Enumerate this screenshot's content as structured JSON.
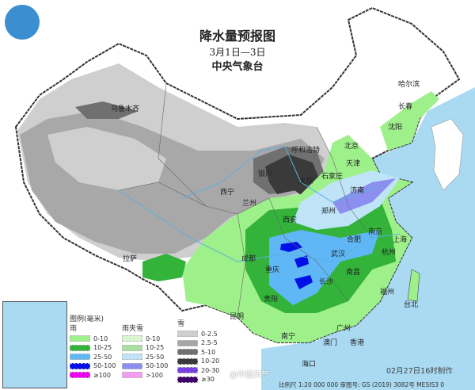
{
  "header": {
    "title": "降水量预报图",
    "date_range": "3月1日—3日",
    "issuer": "中央气象台"
  },
  "cities": [
    {
      "name": "乌鲁木齐"
    },
    {
      "name": "哈尔滨"
    },
    {
      "name": "长春"
    },
    {
      "name": "沈阳"
    },
    {
      "name": "呼和浩特"
    },
    {
      "name": "北京"
    },
    {
      "name": "天津"
    },
    {
      "name": "银川"
    },
    {
      "name": "太原"
    },
    {
      "name": "石家庄"
    },
    {
      "name": "济南"
    },
    {
      "name": "西宁"
    },
    {
      "name": "兰州"
    },
    {
      "name": "郑州"
    },
    {
      "name": "西安"
    },
    {
      "name": "合肥"
    },
    {
      "name": "南京"
    },
    {
      "name": "上海"
    },
    {
      "name": "武汉"
    },
    {
      "name": "杭州"
    },
    {
      "name": "成都"
    },
    {
      "name": "重庆"
    },
    {
      "name": "长沙"
    },
    {
      "name": "南昌"
    },
    {
      "name": "拉萨"
    },
    {
      "name": "贵阳"
    },
    {
      "name": "福州"
    },
    {
      "name": "台北"
    },
    {
      "name": "昆明"
    },
    {
      "name": "南宁"
    },
    {
      "name": "广州"
    },
    {
      "name": "澳门"
    },
    {
      "name": "香港"
    },
    {
      "name": "海口"
    }
  ],
  "legend": {
    "title": "图例(毫米)",
    "rain": {
      "label": "雨",
      "items": [
        {
          "range": "0-10",
          "color": "#9ef08a"
        },
        {
          "range": "10-25",
          "color": "#33b33a"
        },
        {
          "range": "25-50",
          "color": "#5fb8f5"
        },
        {
          "range": "50-100",
          "color": "#0010e8"
        },
        {
          "range": "≥100",
          "color": "#f000f0"
        }
      ]
    },
    "sleet": {
      "label": "雨夹雪",
      "items": [
        {
          "range": "0-10",
          "color": "#d8f6d0"
        },
        {
          "range": "10-25",
          "color": "#a8e0a0"
        },
        {
          "range": "25-50",
          "color": "#bfe4f8"
        },
        {
          "range": "50-100",
          "color": "#8c8ff0"
        },
        {
          "range": ">100",
          "color": "#f49cf0"
        }
      ]
    },
    "snow": {
      "label": "雪",
      "items": [
        {
          "range": "0-2.5",
          "color": "#cfcfcf"
        },
        {
          "range": "2.5-5",
          "color": "#a6a6a6"
        },
        {
          "range": "5-10",
          "color": "#707070"
        },
        {
          "range": "10-20",
          "color": "#3a3a3a"
        },
        {
          "range": "20-30",
          "color": "#7a40e0"
        },
        {
          "range": "≥30",
          "color": "#40006a"
        }
      ]
    }
  },
  "colors": {
    "sea": "#a9daf2",
    "land": "#ffffff",
    "border": "#444444"
  },
  "footer": {
    "scale": "比例尺 1:20 000 000  审图号: GS (2019) 3082号 MESIS3 0",
    "made_time": "02月27日16时制作",
    "watermark": "@中国天气"
  },
  "logo": {
    "name": "中国天气 logo"
  }
}
